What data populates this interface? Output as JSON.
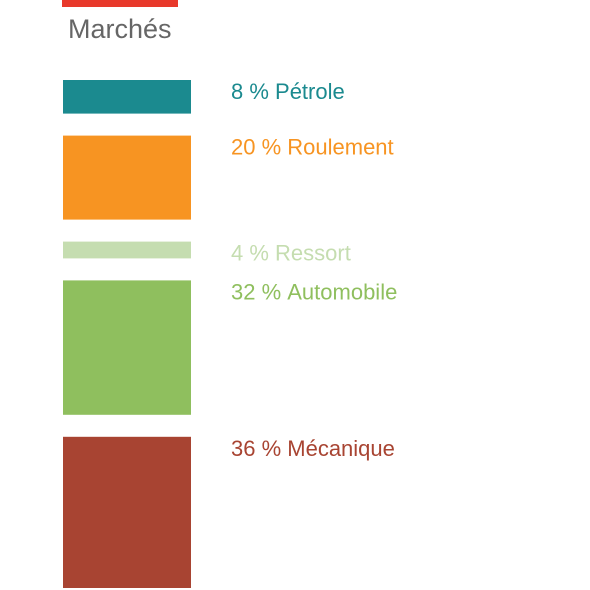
{
  "header": {
    "title": "Marchés",
    "accent_color": "#e8392b"
  },
  "chart_data": {
    "type": "bar",
    "orientation": "stacked-vertical",
    "title": "Marchés",
    "unit": "%",
    "categories": [
      "Pétrole",
      "Roulement",
      "Ressort",
      "Automobile",
      "Mécanique"
    ],
    "values": [
      8,
      20,
      4,
      32,
      36
    ],
    "labels": [
      "8 %",
      "20 %",
      "4 %",
      "32 %",
      "36 %"
    ],
    "colors": [
      "#1b8a8f",
      "#f79422",
      "#c5ddb0",
      "#8fbf5e",
      "#a84432"
    ]
  }
}
